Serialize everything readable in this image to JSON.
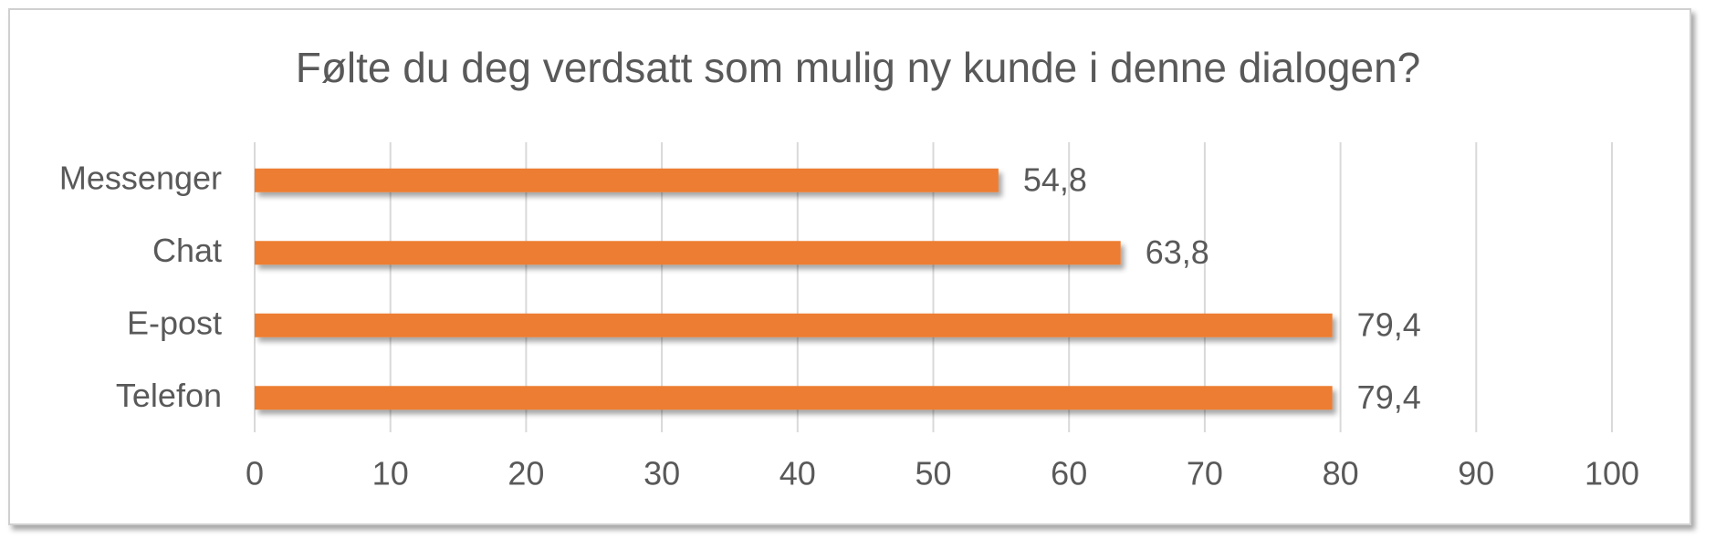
{
  "chart_data": {
    "type": "bar",
    "orientation": "horizontal",
    "title": "Følte du deg verdsatt som mulig ny kunde i denne dialogen?",
    "categories": [
      "Messenger",
      "Chat",
      "E-post",
      "Telefon"
    ],
    "values": [
      54.8,
      63.8,
      79.4,
      79.4
    ],
    "value_labels": [
      "54,8",
      "63,8",
      "79,4",
      "79,4"
    ],
    "color": "#ed7d31",
    "xlim": [
      0,
      100
    ],
    "xticks": [
      0,
      10,
      20,
      30,
      40,
      50,
      60,
      70,
      80,
      90,
      100
    ],
    "grid": true
  }
}
